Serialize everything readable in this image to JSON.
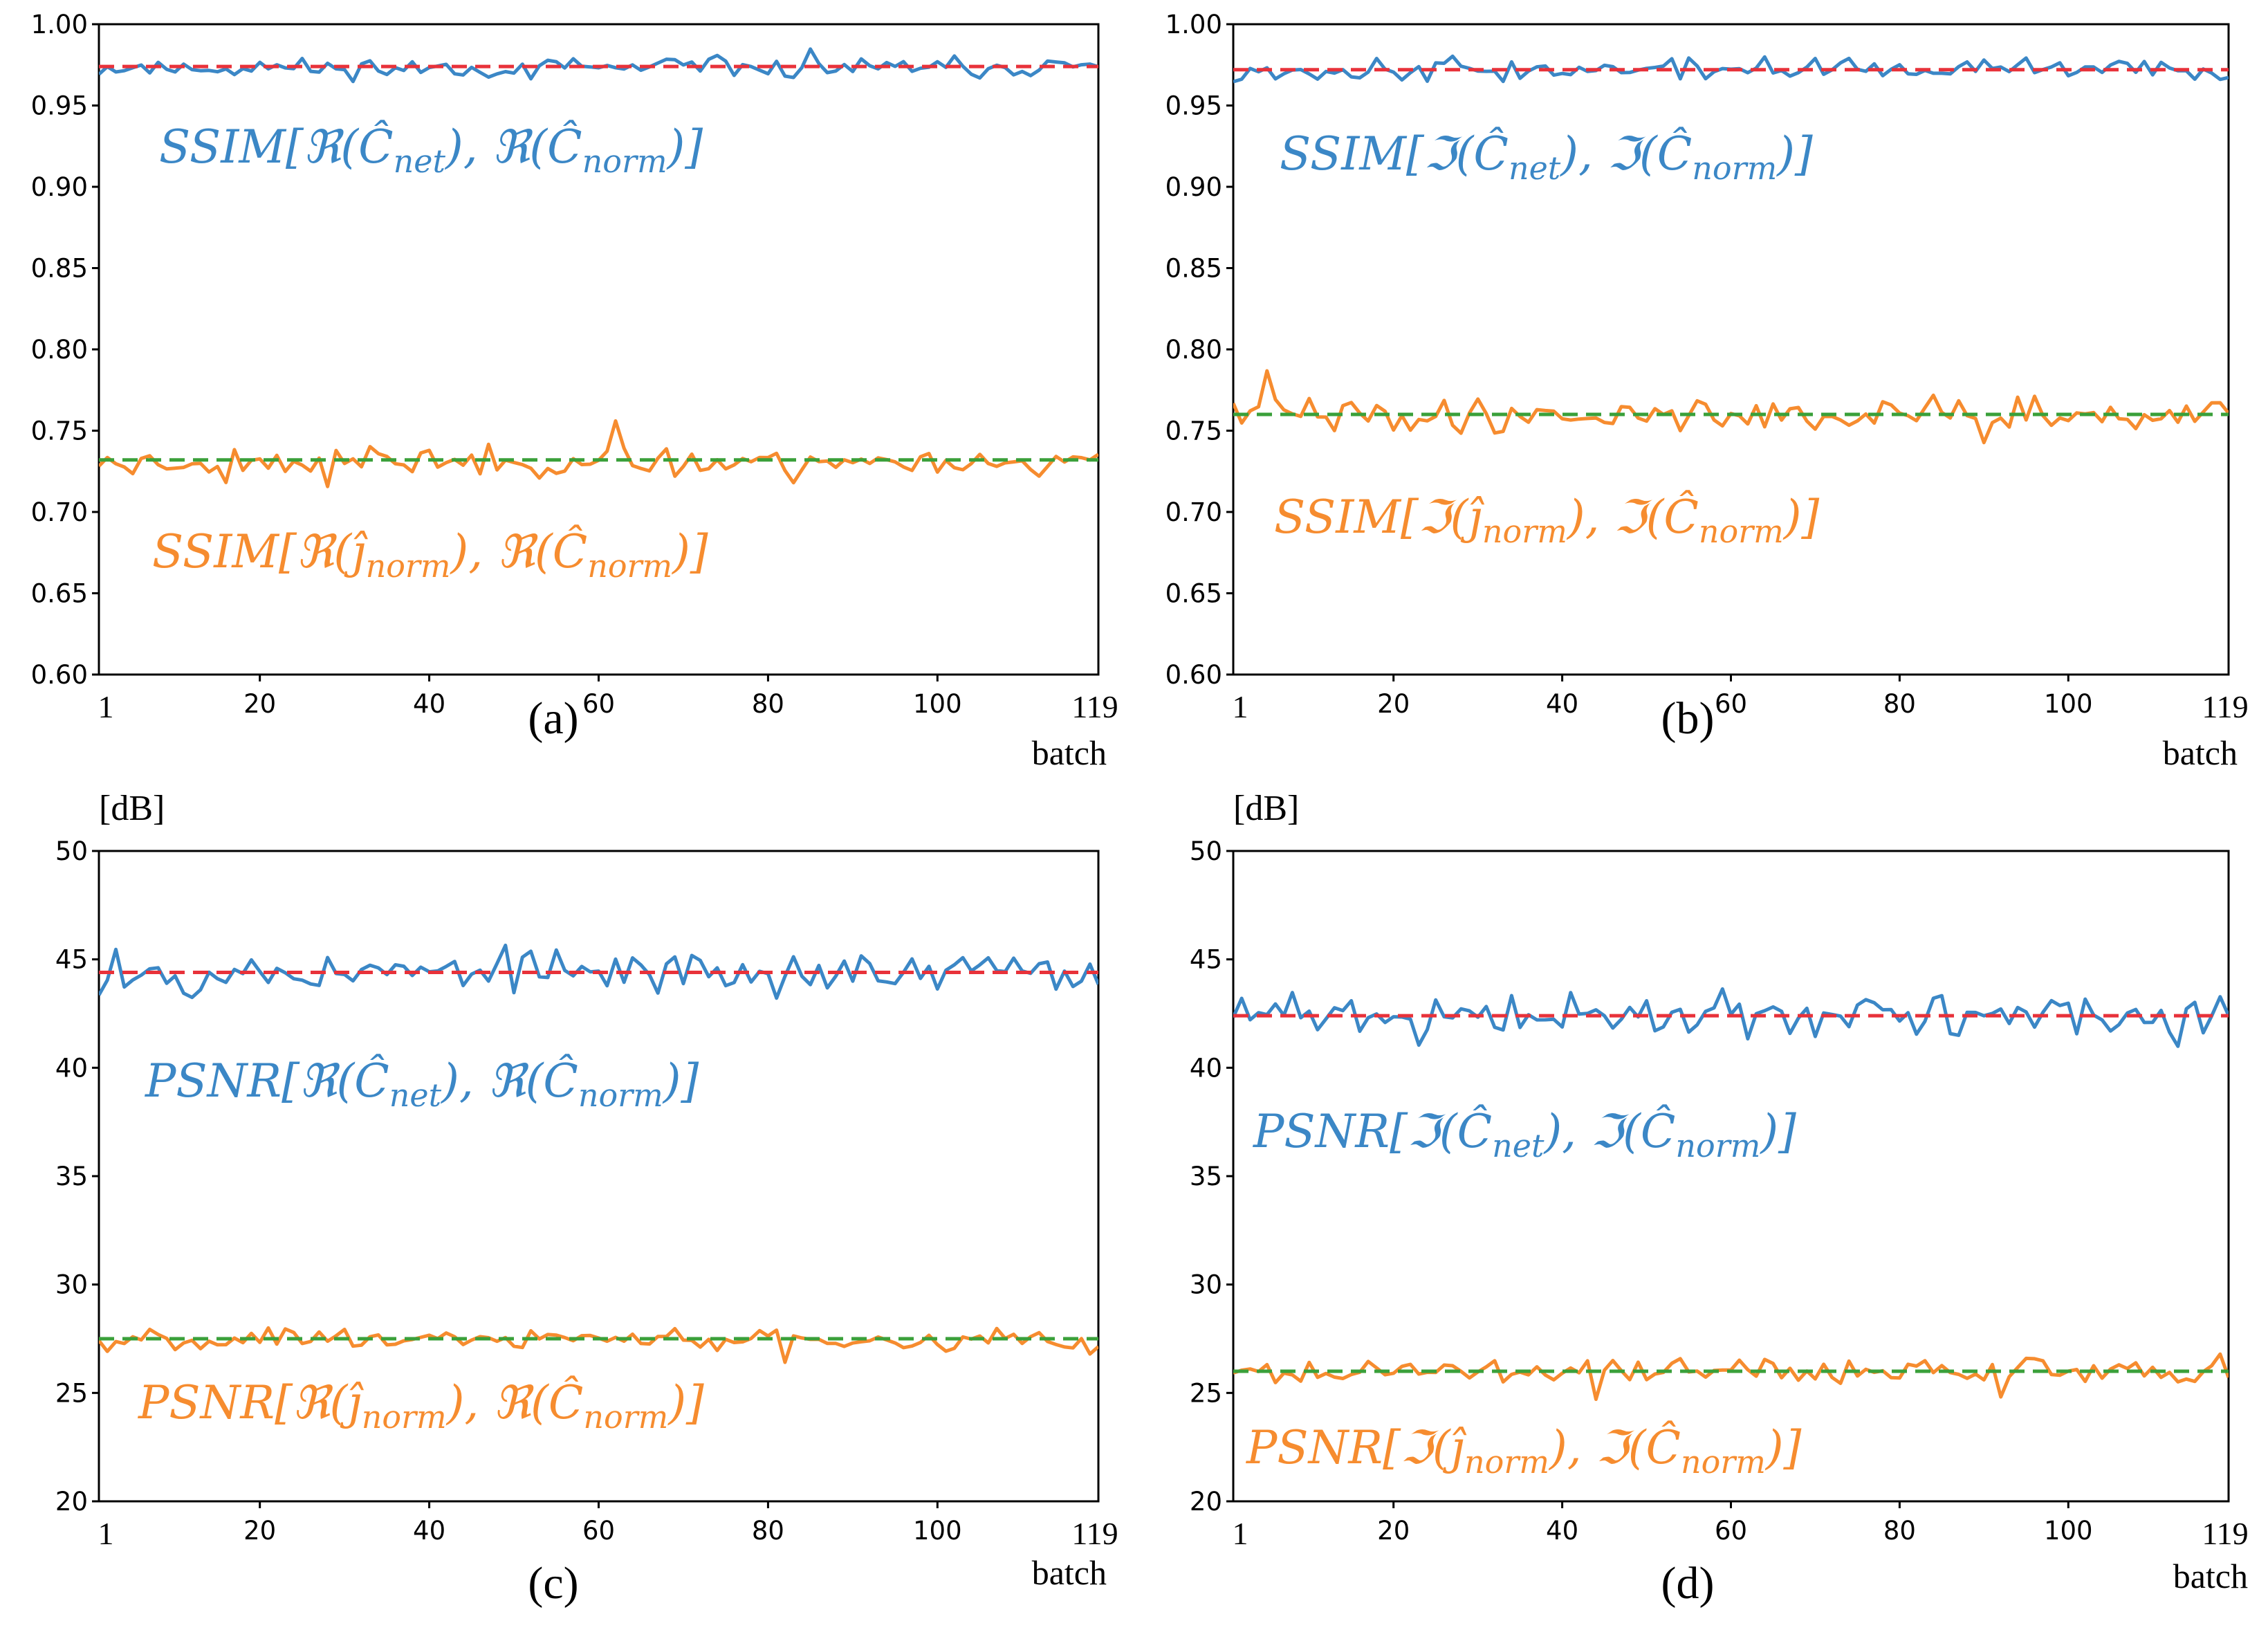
{
  "chart_data": [
    {
      "id": "a",
      "type": "line",
      "panel_label": "(a)",
      "xlabel": "batch",
      "ylabel": "",
      "xlim": [
        1,
        119
      ],
      "ylim": [
        0.6,
        1.0
      ],
      "y_ticks": [
        "0.60",
        "0.65",
        "0.70",
        "0.75",
        "0.80",
        "0.85",
        "0.90",
        "0.95",
        "1.00"
      ],
      "y_tick_values": [
        0.6,
        0.65,
        0.7,
        0.75,
        0.8,
        0.85,
        0.9,
        0.95,
        1.0
      ],
      "x_ticks": [
        "20",
        "40",
        "60",
        "80",
        "100"
      ],
      "x_tick_values": [
        20,
        40,
        60,
        80,
        100
      ],
      "x_end_labels": [
        "1",
        "119"
      ],
      "series": [
        {
          "name": "SSIM[ℜ(Ĉnet), ℜ(Ĉnorm)]",
          "color": "#3b87c6",
          "base": 0.973,
          "amp": 0.009,
          "seed": 11
        },
        {
          "name": "SSIM[ℜ(ĵnorm), ℜ(Ĉnorm)]",
          "color": "#f68c2f",
          "base": 0.731,
          "amp": 0.013,
          "seed": 23
        }
      ],
      "mean_lines": [
        {
          "name": "mean SSIM ℜ net",
          "value": 0.974,
          "color": "#e8323a"
        },
        {
          "name": "mean SSIM ℜ norm",
          "value": 0.732,
          "color": "#3aa03a"
        }
      ],
      "annotations": [
        {
          "text": "SSIM[ℜ(Ĉnet), ℜ(Ĉnorm)]",
          "color": "#3b87c6"
        },
        {
          "text": "SSIM[ℜ(ĵnorm), ℜ(Ĉnorm)]",
          "color": "#f68c2f"
        }
      ]
    },
    {
      "id": "b",
      "type": "line",
      "panel_label": "(b)",
      "xlabel": "batch",
      "ylabel": "",
      "xlim": [
        1,
        119
      ],
      "ylim": [
        0.6,
        1.0
      ],
      "y_ticks": [
        "0.60",
        "0.65",
        "0.70",
        "0.75",
        "0.80",
        "0.85",
        "0.90",
        "0.95",
        "1.00"
      ],
      "y_tick_values": [
        0.6,
        0.65,
        0.7,
        0.75,
        0.8,
        0.85,
        0.9,
        0.95,
        1.0
      ],
      "x_ticks": [
        "20",
        "40",
        "60",
        "80",
        "100"
      ],
      "x_tick_values": [
        20,
        40,
        60,
        80,
        100
      ],
      "x_end_labels": [
        "1",
        "119"
      ],
      "series": [
        {
          "name": "SSIM[ℑ(Ĉnet), ℑ(Ĉnorm)]",
          "color": "#3b87c6",
          "base": 0.972,
          "amp": 0.01,
          "seed": 37
        },
        {
          "name": "SSIM[ℑ(ĵnorm), ℑ(Ĉnorm)]",
          "color": "#f68c2f",
          "base": 0.76,
          "amp": 0.016,
          "seed": 41
        }
      ],
      "mean_lines": [
        {
          "name": "mean SSIM ℑ net",
          "value": 0.972,
          "color": "#e8323a"
        },
        {
          "name": "mean SSIM ℑ norm",
          "value": 0.76,
          "color": "#3aa03a"
        }
      ],
      "annotations": [
        {
          "text": "SSIM[ℑ(Ĉnet), ℑ(Ĉnorm)]",
          "color": "#3b87c6"
        },
        {
          "text": "SSIM[ℑ(ĵnorm), ℑ(Ĉnorm)]",
          "color": "#f68c2f"
        }
      ]
    },
    {
      "id": "c",
      "type": "line",
      "panel_label": "(c)",
      "xlabel": "batch",
      "ylabel": "[dB]",
      "xlim": [
        1,
        119
      ],
      "ylim": [
        20,
        50
      ],
      "y_ticks": [
        "20",
        "25",
        "30",
        "35",
        "40",
        "45",
        "50"
      ],
      "y_tick_values": [
        20,
        25,
        30,
        35,
        40,
        45,
        50
      ],
      "x_ticks": [
        "20",
        "40",
        "60",
        "80",
        "100"
      ],
      "x_tick_values": [
        20,
        40,
        60,
        80,
        100
      ],
      "x_end_labels": [
        "1",
        "119"
      ],
      "series": [
        {
          "name": "PSNR[ℜ(Ĉnet), ℜ(Ĉnorm)]",
          "color": "#3b87c6",
          "base": 44.4,
          "amp": 1.5,
          "seed": 53
        },
        {
          "name": "PSNR[ℜ(ĵnorm), ℜ(Ĉnorm)]",
          "color": "#f68c2f",
          "base": 27.5,
          "amp": 0.7,
          "seed": 67
        }
      ],
      "mean_lines": [
        {
          "name": "mean PSNR ℜ net",
          "value": 44.4,
          "color": "#e8323a"
        },
        {
          "name": "mean PSNR ℜ norm",
          "value": 27.5,
          "color": "#3aa03a"
        }
      ],
      "annotations": [
        {
          "text": "PSNR[ℜ(Ĉnet), ℜ(Ĉnorm)]",
          "color": "#3b87c6"
        },
        {
          "text": "PSNR[ℜ(ĵnorm), ℜ(Ĉnorm)]",
          "color": "#f68c2f"
        }
      ]
    },
    {
      "id": "d",
      "type": "line",
      "panel_label": "(d)",
      "xlabel": "batch",
      "ylabel": "[dB]",
      "xlim": [
        1,
        119
      ],
      "ylim": [
        20,
        50
      ],
      "y_ticks": [
        "20",
        "25",
        "30",
        "35",
        "40",
        "45",
        "50"
      ],
      "y_tick_values": [
        20,
        25,
        30,
        35,
        40,
        45,
        50
      ],
      "x_ticks": [
        "20",
        "40",
        "60",
        "80",
        "100"
      ],
      "x_tick_values": [
        20,
        40,
        60,
        80,
        100
      ],
      "x_end_labels": [
        "1",
        "119"
      ],
      "series": [
        {
          "name": "PSNR[ℑ(Ĉnet), ℑ(Ĉnorm)]",
          "color": "#3b87c6",
          "base": 42.4,
          "amp": 1.4,
          "seed": 71
        },
        {
          "name": "PSNR[ℑ(ĵnorm), ℑ(Ĉnorm)]",
          "color": "#f68c2f",
          "base": 26.0,
          "amp": 1.0,
          "seed": 89
        }
      ],
      "mean_lines": [
        {
          "name": "mean PSNR ℑ net",
          "value": 42.4,
          "color": "#e8323a"
        },
        {
          "name": "mean PSNR ℑ norm",
          "value": 26.0,
          "color": "#3aa03a"
        }
      ],
      "annotations": [
        {
          "text": "PSNR[ℑ(Ĉnet), ℑ(Ĉnorm)]",
          "color": "#3b87c6"
        },
        {
          "text": "PSNR[ℑ(ĵnorm), ℑ(Ĉnorm)]",
          "color": "#f68c2f"
        }
      ]
    }
  ]
}
